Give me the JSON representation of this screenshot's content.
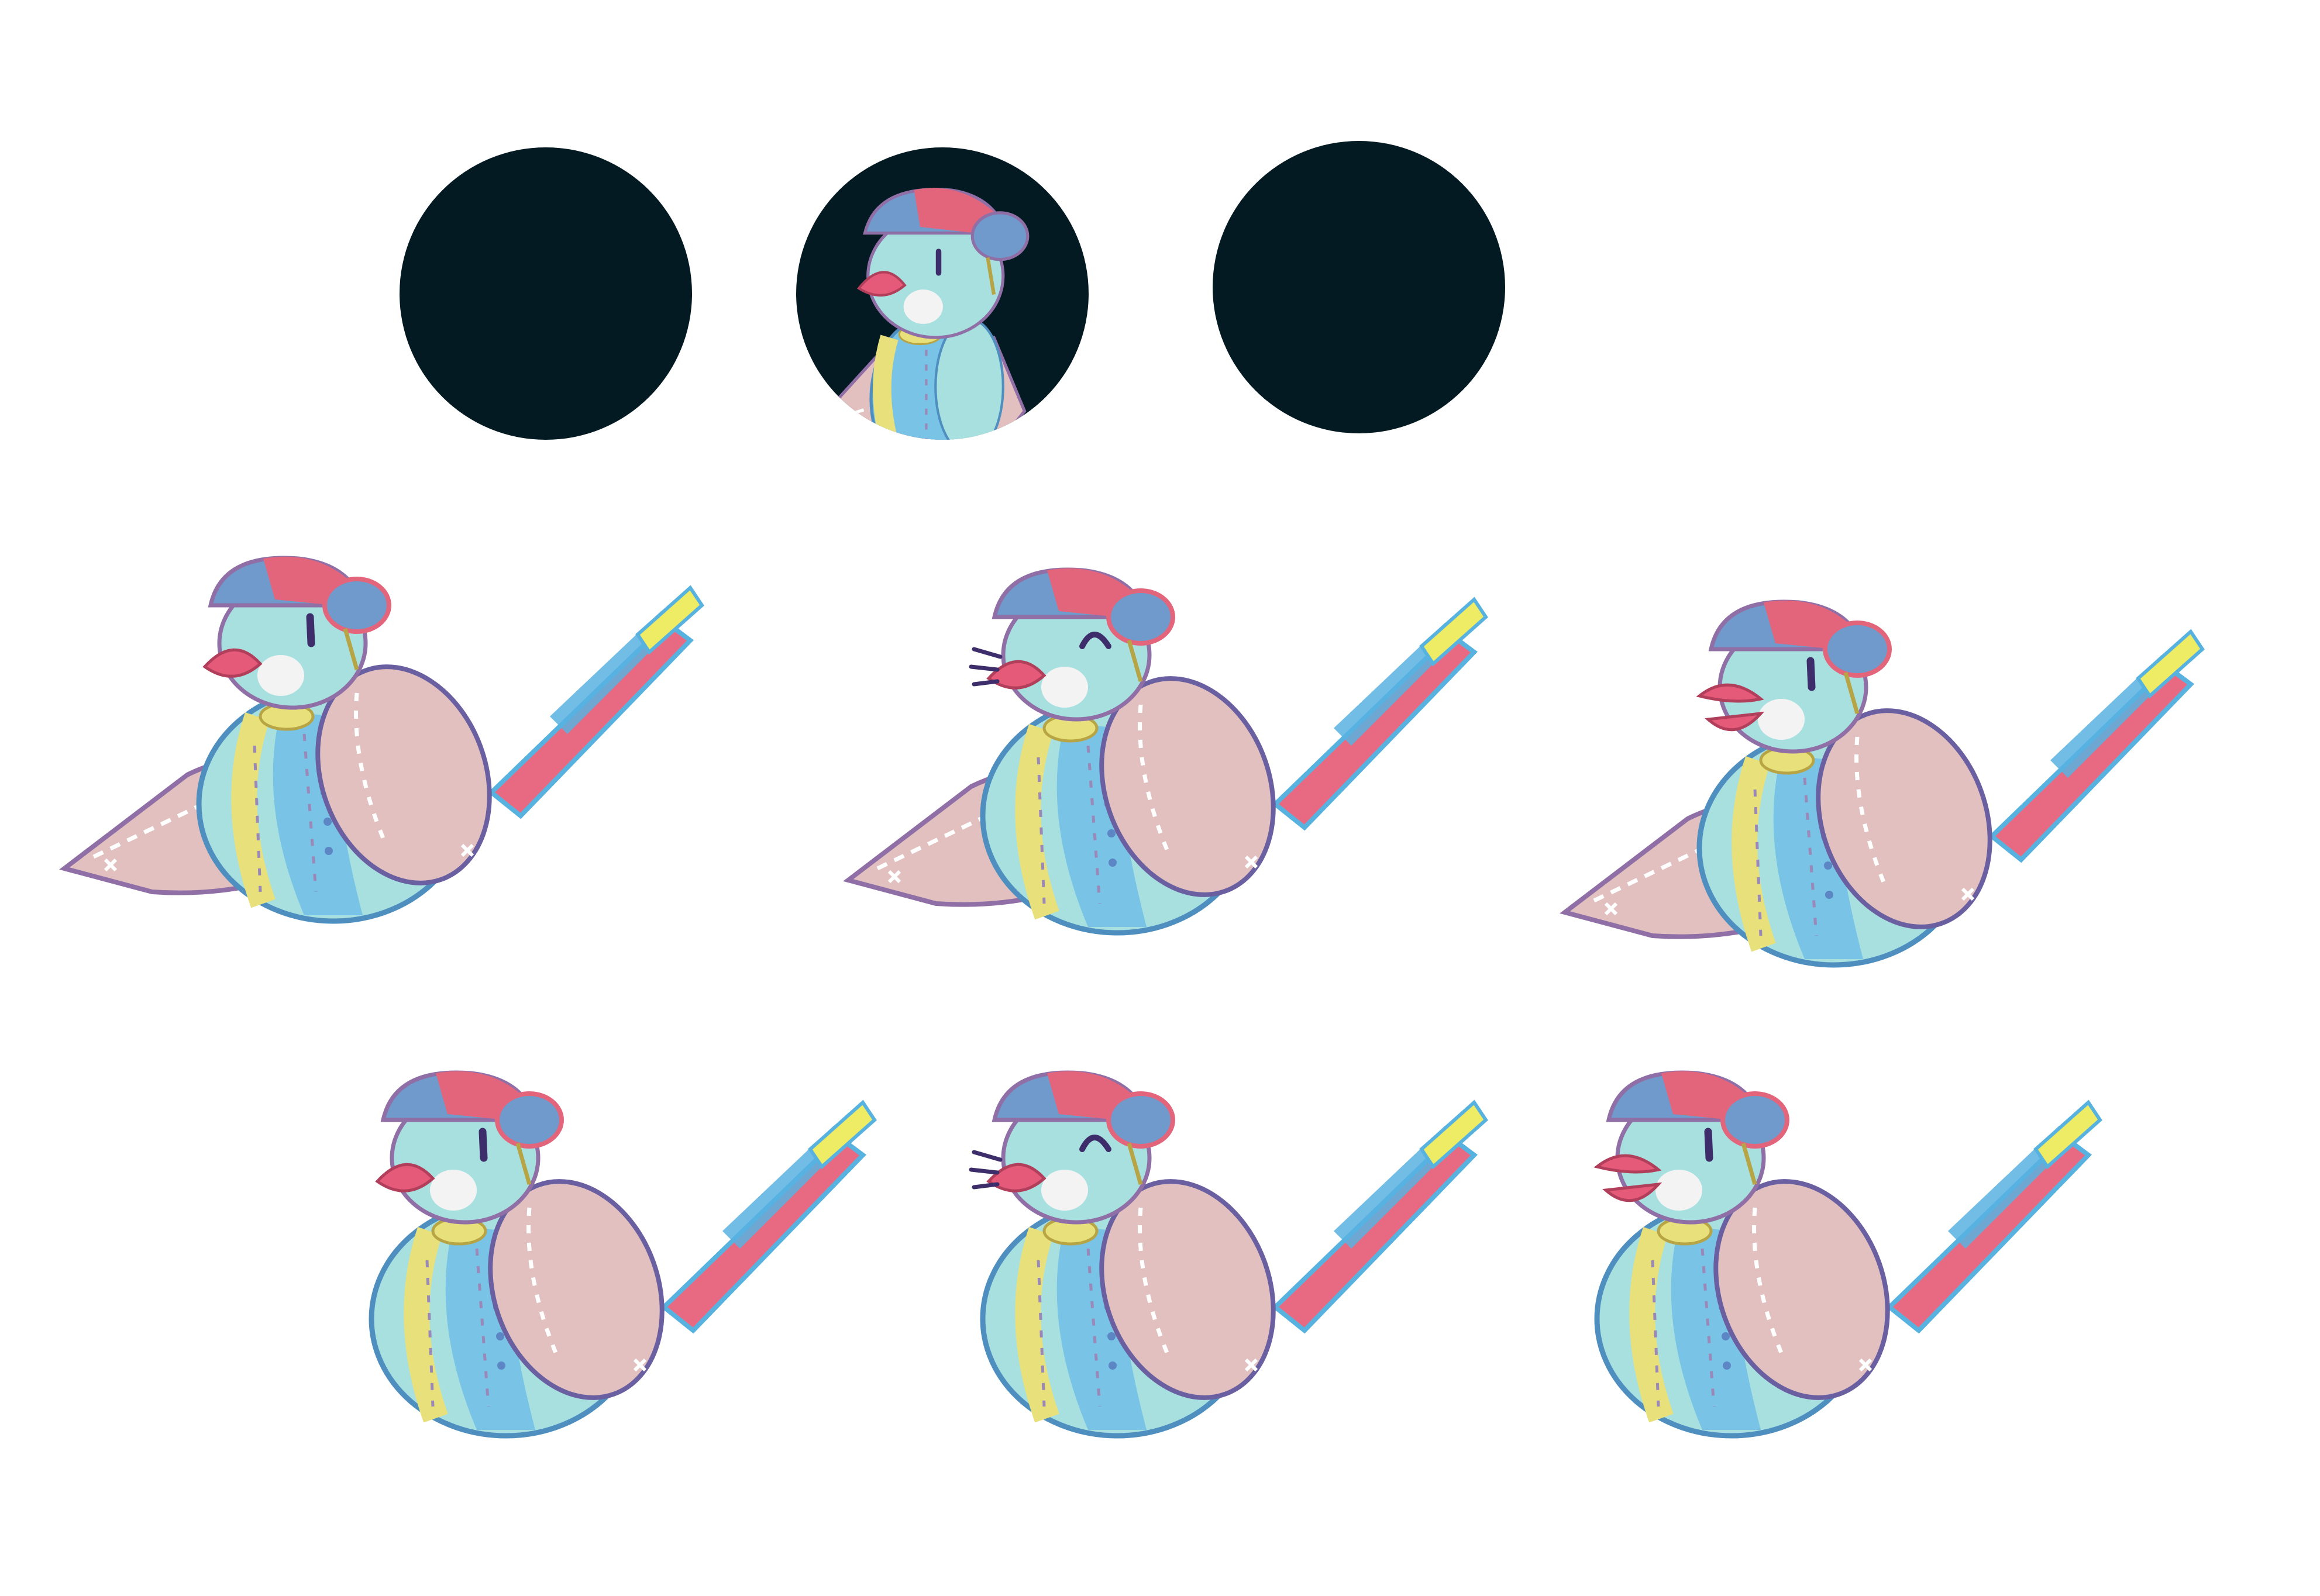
{
  "palette": {
    "background": "#ffffff",
    "portrait_bg": "#041a22",
    "cap_blue": "#6f9acb",
    "cap_red": "#e3657c",
    "head": "#a8e0e0",
    "wing": "#e2c0bf",
    "belly_blue": "#78c3e6",
    "belly_yellow": "#e8e07a",
    "beak": "#e45a78",
    "tail_red": "#e86a82",
    "tail_blue": "#58b2e0",
    "tail_yellow": "#eeec64",
    "eye": "#3d2d6a",
    "stitch": "#9a88b8",
    "outline": "#8f6fa6"
  },
  "portraits": [
    {
      "state": "empty"
    },
    {
      "state": "filled",
      "character": "patchwork-bird"
    },
    {
      "state": "empty"
    }
  ],
  "sprites_row1": [
    {
      "eye": "open",
      "beak": "closed",
      "wing": "spread",
      "motion_lines": false
    },
    {
      "eye": "wink",
      "beak": "closed",
      "wing": "spread",
      "motion_lines": true
    },
    {
      "eye": "open",
      "beak": "open",
      "wing": "spread",
      "motion_lines": false
    }
  ],
  "sprites_row2": [
    {
      "eye": "open",
      "beak": "closed",
      "wing": "folded",
      "motion_lines": false
    },
    {
      "eye": "wink",
      "beak": "closed",
      "wing": "folded",
      "motion_lines": true
    },
    {
      "eye": "open",
      "beak": "open",
      "wing": "folded",
      "motion_lines": false
    }
  ]
}
